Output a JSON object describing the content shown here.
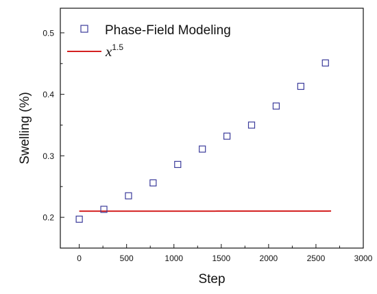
{
  "chart_data": {
    "type": "scatter",
    "xlabel": "Step",
    "ylabel": "Swelling (%)",
    "xlim": [
      -200,
      3000
    ],
    "ylim": [
      0.15,
      0.54
    ],
    "xticks": [
      0,
      500,
      1000,
      1500,
      2000,
      2500,
      3000
    ],
    "yticks": [
      0.2,
      0.3,
      0.4,
      0.5
    ],
    "xtick_labels": [
      "0",
      "500",
      "1000",
      "1500",
      "2000",
      "2500",
      "3000"
    ],
    "ytick_labels": [
      "0.2",
      "0.3",
      "0.4",
      "0.5"
    ],
    "legend_position": "top-left",
    "series": [
      {
        "name": "Phase-Field Modeling",
        "kind": "markers",
        "marker": "open-square",
        "color": "#3a3a9a",
        "x": [
          0,
          260,
          520,
          780,
          1040,
          1300,
          1560,
          1820,
          2080,
          2340,
          2600
        ],
        "y": [
          0.197,
          0.213,
          0.235,
          0.256,
          0.286,
          0.311,
          0.332,
          0.35,
          0.381,
          0.413,
          0.451
        ]
      },
      {
        "name": "x",
        "name_sup": "1.5",
        "kind": "line",
        "color": "#d42020",
        "fit": {
          "a": 0.21,
          "b": 1.8e-09,
          "exponent": 1.5,
          "x_start": 0,
          "x_end": 2660
        }
      }
    ]
  }
}
